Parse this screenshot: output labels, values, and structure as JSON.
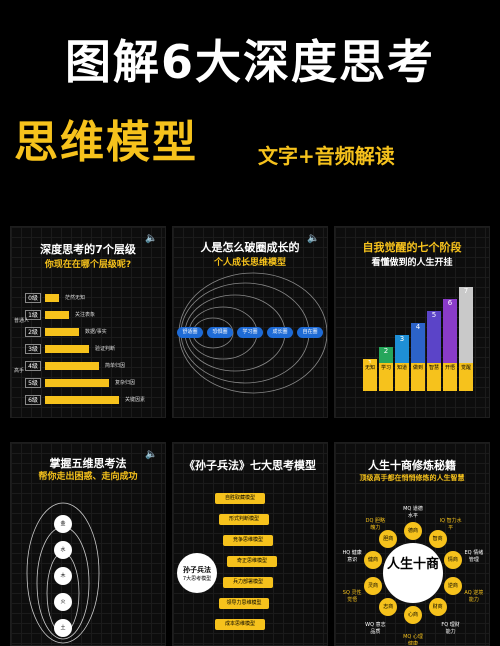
{
  "header": {
    "title": "图解6大深度思考",
    "title2": "思维模型",
    "subtitle": "文字+音频解读"
  },
  "panels": {
    "p1": {
      "title": "深度思考的7个层级",
      "sub": "你现在在哪个层级呢?",
      "levels": [
        "0级",
        "1级",
        "2级",
        "3级",
        "4级",
        "5级",
        "6级"
      ],
      "items": [
        "茫然无知",
        "关注表象",
        "数据/事实",
        "验证判断",
        "简单归因",
        "复杂归因",
        "关键因素"
      ],
      "left_labels": [
        "普通人",
        "高手"
      ]
    },
    "p2": {
      "title": "人是怎么破圈成长的",
      "sub": "个人成长思维模型",
      "nodes": [
        "舒适圈",
        "恐惧圈",
        "学习圈",
        "成长圈",
        "自在圈"
      ]
    },
    "p3": {
      "title": "自我觉醒的七个阶段",
      "sub": "看懂做到的人生开挂",
      "steps": [
        "1",
        "2",
        "3",
        "4",
        "5",
        "6",
        "7"
      ],
      "labels": [
        "无知",
        "学习",
        "知道",
        "做到",
        "智慧",
        "开悟",
        "觉醒"
      ]
    },
    "p4": {
      "title": "掌握五维思考法",
      "sub": "帮你走出困惑、走向成功",
      "elements": [
        "金",
        "水",
        "木",
        "火",
        "土"
      ]
    },
    "p5": {
      "title": "《孙子兵法》七大思考模型",
      "center": "孙子兵法",
      "center_sub": "7大思考模型",
      "items": [
        "自胜取藏模型",
        "形式判断模型",
        "竞争思维模型",
        "奇正思维模型",
        "兵力部署模型",
        "领导力思维模型",
        "成本思维模型"
      ]
    },
    "p6": {
      "title": "人生十商修炼秘籍",
      "sub": "顶级高手都在悄悄修炼的人生智慧",
      "center": "人生十商",
      "ring": [
        "德商",
        "智商",
        "情商",
        "逆商",
        "财商",
        "心商",
        "志商",
        "灵商",
        "健商",
        "胆商"
      ],
      "outer": [
        "MQ 道德水平",
        "IQ 智力水平",
        "EQ 情绪管理",
        "AQ 逆境能力",
        "FQ 理财能力",
        "MQ 心理健康",
        "WQ 意志品质",
        "SQ 灵性觉悟",
        "HQ 健康意识",
        "DQ 胆略魄力"
      ]
    }
  },
  "colors": {
    "accent": "#f6c21c",
    "node": "#1e6bd6",
    "bg": "#000000"
  }
}
